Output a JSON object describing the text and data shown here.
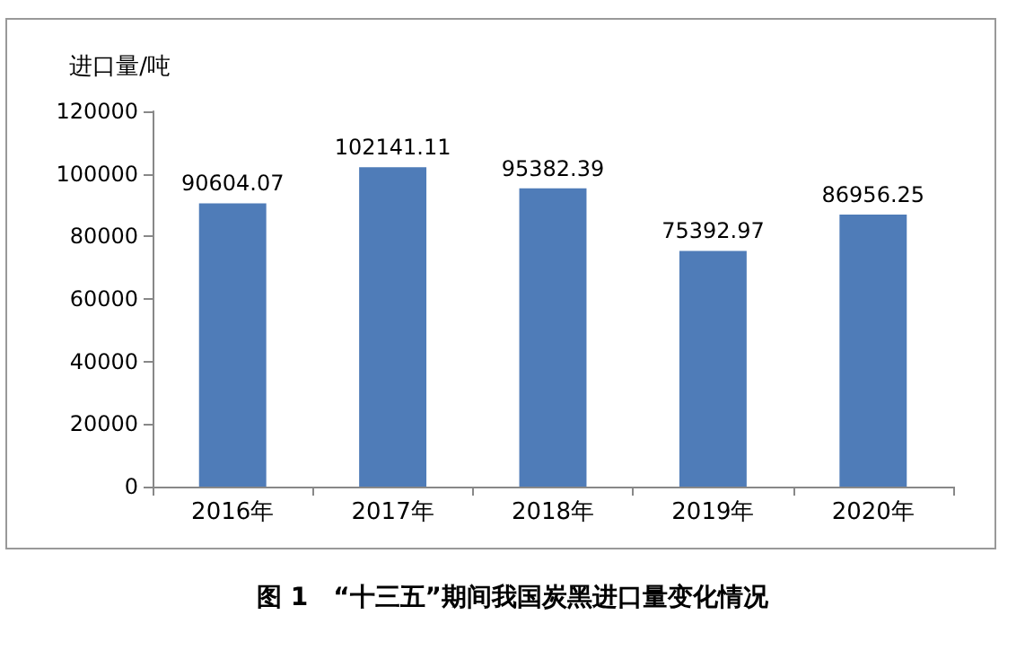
{
  "chart_data": {
    "type": "bar",
    "ylabel": "进口量/吨",
    "categories": [
      "2016年",
      "2017年",
      "2018年",
      "2019年",
      "2020年"
    ],
    "values": [
      90604.07,
      102141.11,
      95382.39,
      75392.97,
      86956.25
    ],
    "color": "#4f7cb8",
    "ylim": [
      0,
      120000
    ],
    "yticks": [
      0,
      20000,
      40000,
      60000,
      80000,
      100000,
      120000
    ],
    "grid": false,
    "data_labels": true,
    "annotations": [
      "图 1　“十三五”期间我国炭黑进口量变化情况"
    ]
  }
}
